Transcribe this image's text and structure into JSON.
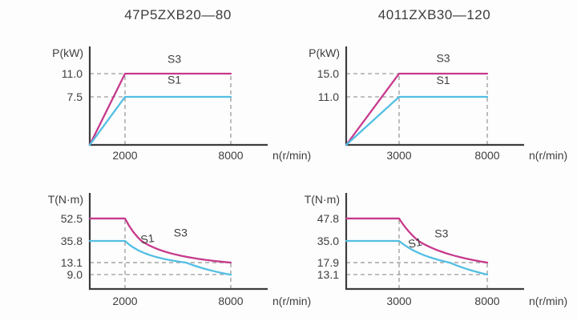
{
  "colors": {
    "background": "#fdfdfd",
    "axis": "#3d3d3d",
    "guide": "#9b9b9b",
    "text": "#3e3e3e",
    "s3_line": "#c63a8c",
    "s1_line": "#52bfe4"
  },
  "columns": [
    {
      "title": "47P5ZXB20—80"
    },
    {
      "title": "4011ZXB30—120"
    }
  ],
  "chart_data": [
    {
      "type": "line",
      "name": "power-chart-47P5ZXB20-80",
      "kind": "power",
      "ylabel": "P(kW)",
      "xlabel": "n(r/min)",
      "xlim": [
        0,
        10000
      ],
      "ylim": [
        0,
        14.5
      ],
      "y_anchors": [
        [
          0,
          0
        ],
        [
          7.5,
          0.504
        ],
        [
          11,
          0.748
        ],
        [
          14.5,
          1
        ]
      ],
      "yticks": [
        {
          "v": 11.0,
          "label": "11.0"
        },
        {
          "v": 7.5,
          "label": "7.5"
        }
      ],
      "xticks": [
        {
          "v": 2000,
          "label": "2000"
        },
        {
          "v": 8000,
          "label": "8000"
        }
      ],
      "guides": [
        {
          "o": "h",
          "at": 11,
          "from": 0,
          "to": 2000
        },
        {
          "o": "h",
          "at": 7.5,
          "from": 0,
          "to": 2000
        },
        {
          "o": "v",
          "at": 2000,
          "from": 0,
          "to": 11
        },
        {
          "o": "v",
          "at": 8000,
          "from": 0,
          "to": 11
        }
      ],
      "series": [
        {
          "name": "S3",
          "color_key": "s3_line",
          "shape": "linear",
          "points": [
            [
              0,
              0
            ],
            [
              2000,
              11
            ],
            [
              8000,
              11
            ]
          ],
          "label_at": [
            4800,
            12.6
          ],
          "label_rot": 0
        },
        {
          "name": "S1",
          "color_key": "s1_line",
          "shape": "linear",
          "points": [
            [
              0,
              0
            ],
            [
              2000,
              7.5
            ],
            [
              8000,
              7.5
            ]
          ],
          "label_at": [
            4800,
            9.5
          ],
          "label_rot": 0
        }
      ]
    },
    {
      "type": "line",
      "name": "power-chart-4011ZXB30-120",
      "kind": "power",
      "ylabel": "P(kW)",
      "xlabel": "n(r/min)",
      "xlim": [
        0,
        10000
      ],
      "ylim": [
        0,
        19.5
      ],
      "y_anchors": [
        [
          0,
          0
        ],
        [
          11,
          0.504
        ],
        [
          15,
          0.748
        ],
        [
          19.5,
          1
        ]
      ],
      "yticks": [
        {
          "v": 15.0,
          "label": "15.0"
        },
        {
          "v": 11.0,
          "label": "11.0"
        }
      ],
      "xticks": [
        {
          "v": 3000,
          "label": "3000"
        },
        {
          "v": 8000,
          "label": "8000"
        }
      ],
      "guides": [
        {
          "o": "h",
          "at": 15,
          "from": 0,
          "to": 3000
        },
        {
          "o": "h",
          "at": 11,
          "from": 0,
          "to": 3000
        },
        {
          "o": "v",
          "at": 3000,
          "from": 0,
          "to": 15
        },
        {
          "o": "v",
          "at": 8000,
          "from": 0,
          "to": 15
        }
      ],
      "series": [
        {
          "name": "S3",
          "color_key": "s3_line",
          "shape": "linear",
          "points": [
            [
              0,
              0
            ],
            [
              3000,
              15
            ],
            [
              8000,
              15
            ]
          ],
          "label_at": [
            5500,
            17.2
          ],
          "label_rot": 0
        },
        {
          "name": "S1",
          "color_key": "s1_line",
          "shape": "linear",
          "points": [
            [
              0,
              0
            ],
            [
              3000,
              11
            ],
            [
              8000,
              11
            ]
          ],
          "label_at": [
            5500,
            13.2
          ],
          "label_rot": 0
        }
      ]
    },
    {
      "type": "line",
      "name": "torque-chart-47P5ZXB20-80",
      "kind": "torque",
      "ylabel": "T(N·m)",
      "xlabel": "n(r/min)",
      "xlim": [
        0,
        10000
      ],
      "ylim": [
        0,
        66
      ],
      "y_anchors": [
        [
          0,
          0
        ],
        [
          9,
          0.155
        ],
        [
          13.1,
          0.284
        ],
        [
          35.8,
          0.517
        ],
        [
          52.5,
          0.759
        ],
        [
          66,
          1
        ]
      ],
      "yticks": [
        {
          "v": 52.5,
          "label": "52.5"
        },
        {
          "v": 35.8,
          "label": "35.8"
        },
        {
          "v": 13.1,
          "label": "13.1"
        },
        {
          "v": 9.0,
          "label": "9.0"
        }
      ],
      "xticks": [
        {
          "v": 2000,
          "label": "2000"
        },
        {
          "v": 8000,
          "label": "8000"
        }
      ],
      "guides": [
        {
          "o": "h",
          "at": 13.1,
          "from": 0,
          "to": 8000
        },
        {
          "o": "h",
          "at": 9,
          "from": 0,
          "to": 8000
        },
        {
          "o": "v",
          "at": 2000,
          "from": 0,
          "to": 52.5
        },
        {
          "o": "v",
          "at": 8000,
          "from": 0,
          "to": 13.1
        }
      ],
      "series": [
        {
          "name": "S3",
          "color_key": "s3_line",
          "shape": "flat-hyperbolic",
          "points": [
            [
              0,
              52.5
            ],
            [
              2000,
              52.5
            ],
            [
              8000,
              13.1
            ]
          ],
          "label_at": [
            5150,
            39
          ],
          "label_rot": 0
        },
        {
          "name": "S1",
          "color_key": "s1_line",
          "shape": "flat-hyperbolic",
          "points": [
            [
              0,
              35.8
            ],
            [
              2000,
              35.8
            ],
            [
              8000,
              9.0
            ]
          ],
          "label_at": [
            3300,
            34
          ],
          "label_rot": -8
        }
      ]
    },
    {
      "type": "line",
      "name": "torque-chart-4011ZXB30-120",
      "kind": "torque",
      "ylabel": "T(N·m)",
      "xlabel": "n(r/min)",
      "xlim": [
        0,
        10000
      ],
      "ylim": [
        0,
        60
      ],
      "y_anchors": [
        [
          0,
          0
        ],
        [
          13.1,
          0.155
        ],
        [
          17.9,
          0.284
        ],
        [
          35,
          0.517
        ],
        [
          47.8,
          0.759
        ],
        [
          60,
          1
        ]
      ],
      "yticks": [
        {
          "v": 47.8,
          "label": "47.8"
        },
        {
          "v": 35.0,
          "label": "35.0"
        },
        {
          "v": 17.9,
          "label": "17.9"
        },
        {
          "v": 13.1,
          "label": "13.1"
        }
      ],
      "xticks": [
        {
          "v": 3000,
          "label": "3000"
        },
        {
          "v": 8000,
          "label": "8000"
        }
      ],
      "guides": [
        {
          "o": "h",
          "at": 17.9,
          "from": 0,
          "to": 8000
        },
        {
          "o": "h",
          "at": 13.1,
          "from": 0,
          "to": 8000
        },
        {
          "o": "v",
          "at": 3000,
          "from": 0,
          "to": 47.8
        },
        {
          "o": "v",
          "at": 8000,
          "from": 0,
          "to": 17.9
        }
      ],
      "series": [
        {
          "name": "S3",
          "color_key": "s3_line",
          "shape": "flat-hyperbolic",
          "points": [
            [
              0,
              47.8
            ],
            [
              3000,
              47.8
            ],
            [
              8000,
              17.9
            ]
          ],
          "label_at": [
            5400,
            37
          ],
          "label_rot": 0
        },
        {
          "name": "S1",
          "color_key": "s1_line",
          "shape": "flat-hyperbolic",
          "points": [
            [
              0,
              35.0
            ],
            [
              3000,
              35.0
            ],
            [
              8000,
              13.1
            ]
          ],
          "label_at": [
            3950,
            30.5
          ],
          "label_rot": -12
        }
      ]
    }
  ]
}
